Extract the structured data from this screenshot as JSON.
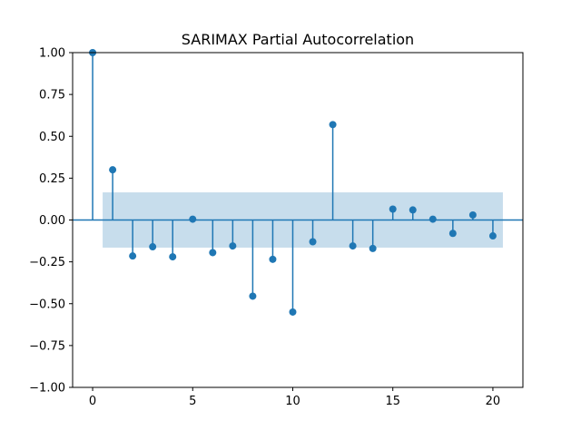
{
  "chart_data": {
    "type": "stem",
    "title": "SARIMAX Partial Autocorrelation",
    "xlabel": "",
    "ylabel": "",
    "xlim": [
      -1,
      21.5
    ],
    "ylim": [
      -1.0,
      1.0
    ],
    "x_ticks": [
      0,
      5,
      10,
      15,
      20
    ],
    "y_ticks": [
      "-1.00",
      "-0.75",
      "-0.50",
      "-0.25",
      "0.00",
      "0.25",
      "0.50",
      "0.75",
      "1.00"
    ],
    "lags": [
      0,
      1,
      2,
      3,
      4,
      5,
      6,
      7,
      8,
      9,
      10,
      11,
      12,
      13,
      14,
      15,
      16,
      17,
      18,
      19,
      20
    ],
    "values": [
      1.0,
      0.3,
      -0.215,
      -0.16,
      -0.22,
      0.005,
      -0.195,
      -0.155,
      -0.455,
      -0.235,
      -0.55,
      -0.13,
      0.57,
      -0.155,
      -0.17,
      0.065,
      0.06,
      0.005,
      -0.08,
      0.03,
      -0.095
    ],
    "confidence_band": {
      "x_range": [
        0.5,
        20.5
      ],
      "lower": -0.165,
      "upper": 0.165
    },
    "grid": false,
    "colors": {
      "stem": "#1f77b4",
      "band": "#1f77b4",
      "band_opacity": 0.25
    }
  }
}
